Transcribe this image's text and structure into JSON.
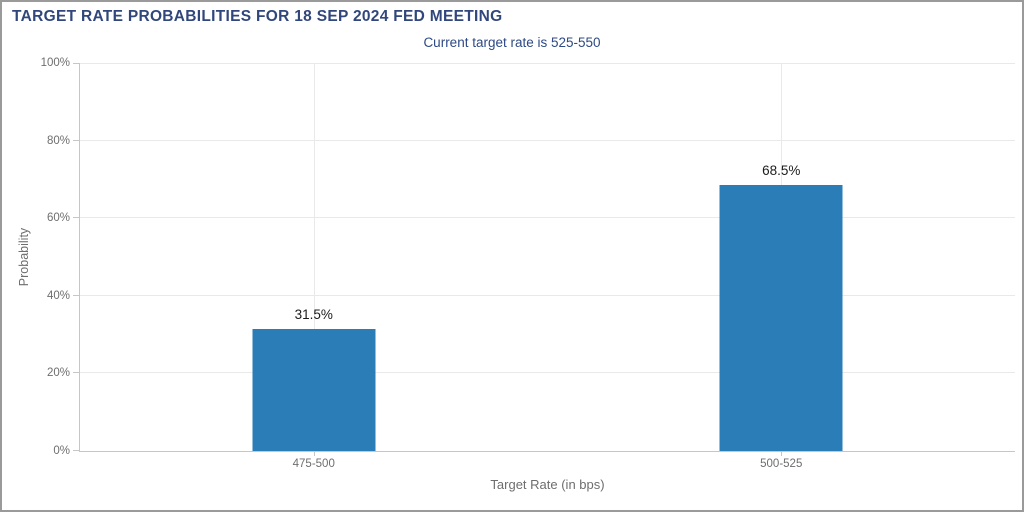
{
  "chart_data": {
    "type": "bar",
    "title": "TARGET RATE PROBABILITIES FOR 18 SEP 2024 FED MEETING",
    "subtitle": "Current target rate is 525-550",
    "categories": [
      "475-500",
      "500-525"
    ],
    "values": [
      31.5,
      68.5
    ],
    "value_labels": [
      "31.5%",
      "68.5%"
    ],
    "xlabel": "Target Rate (in bps)",
    "ylabel": "Probability",
    "ylim": [
      0,
      100
    ],
    "y_ticks": [
      "0%",
      "20%",
      "40%",
      "60%",
      "80%",
      "100%"
    ],
    "grid": true,
    "legend": "none",
    "colors": {
      "bar": "#2b7db7",
      "title_text": "#31477c",
      "subtitle_text": "#2d4a85",
      "axis_text": "#6e6e6e",
      "axis_line": "#c6c6c6",
      "gridline": "#e9e9e9",
      "value_text": "#1c1c1c",
      "page_border": "#9a9a9a"
    }
  }
}
